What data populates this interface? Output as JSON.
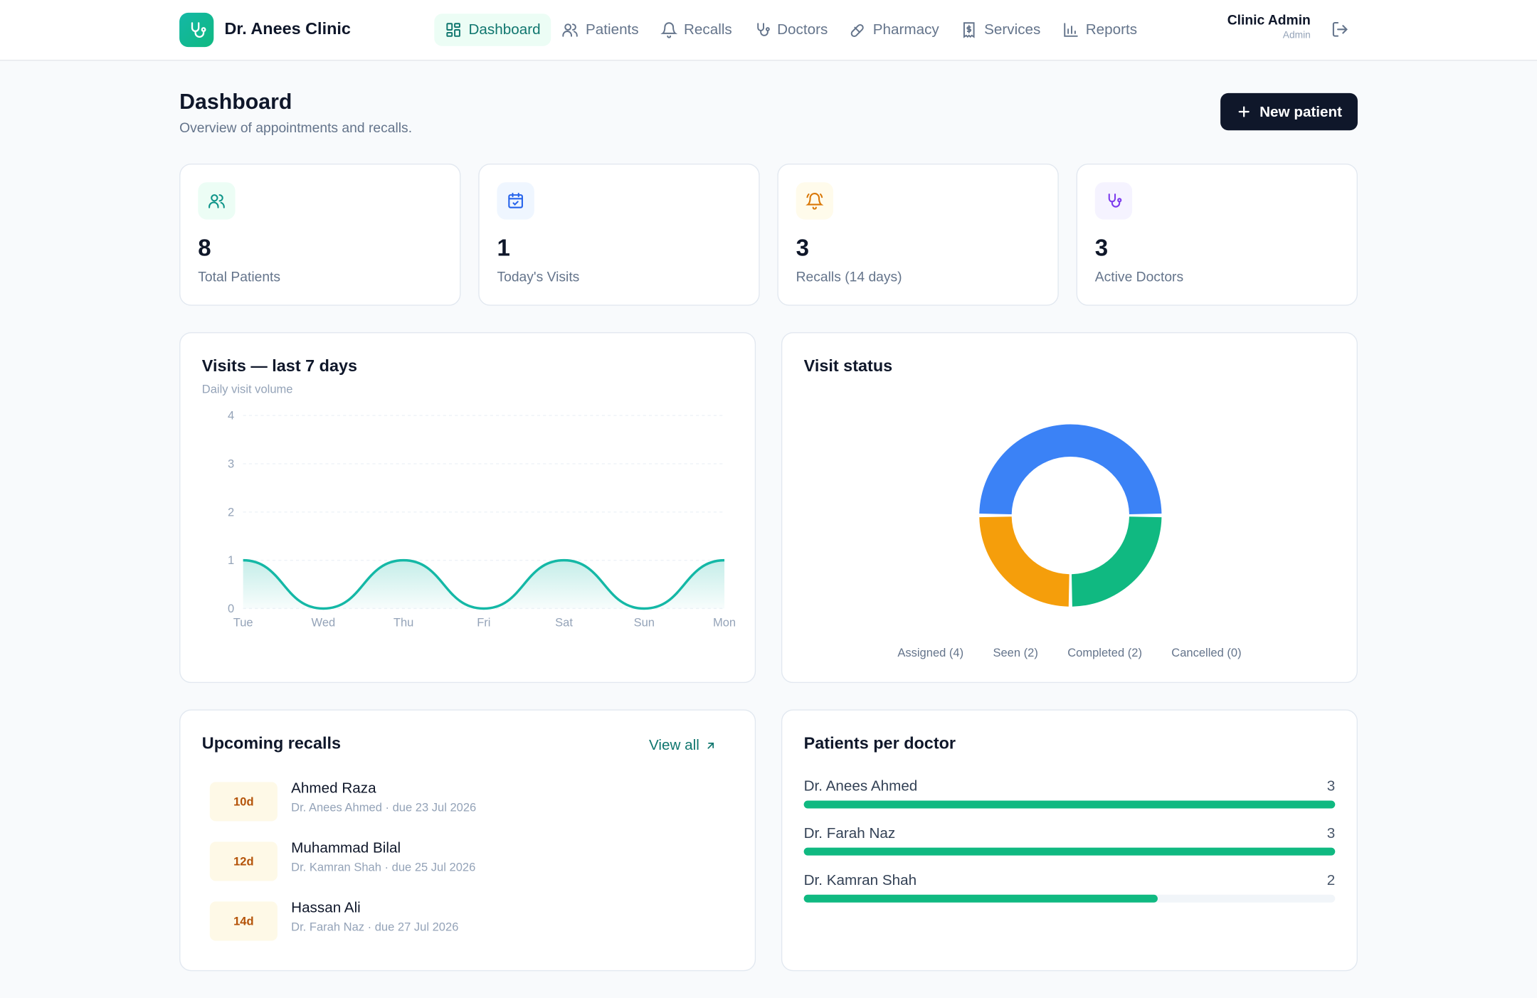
{
  "brand": {
    "name": "Dr. Anees Clinic",
    "logo_icon": "stethoscope-icon"
  },
  "nav": [
    {
      "label": "Dashboard",
      "icon": "dashboard-icon",
      "active": true
    },
    {
      "label": "Patients",
      "icon": "users-icon"
    },
    {
      "label": "Recalls",
      "icon": "bell-icon"
    },
    {
      "label": "Doctors",
      "icon": "stethoscope-icon"
    },
    {
      "label": "Pharmacy",
      "icon": "pill-icon"
    },
    {
      "label": "Services",
      "icon": "receipt-icon"
    },
    {
      "label": "Reports",
      "icon": "bar-chart-icon"
    }
  ],
  "user": {
    "name": "Clinic Admin",
    "role": "Admin",
    "logout_icon": "logout-icon"
  },
  "page": {
    "title": "Dashboard",
    "subtitle": "Overview of appointments and recalls.",
    "new_button": "New patient"
  },
  "stats": [
    {
      "value": "8",
      "label": "Total Patients",
      "icon": "users-icon",
      "color": "#0d9488",
      "bg": "#ecfdf5"
    },
    {
      "value": "1",
      "label": "Today's Visits",
      "icon": "calendar-check-icon",
      "color": "#2563eb",
      "bg": "#eff6ff"
    },
    {
      "value": "3",
      "label": "Recalls (14 days)",
      "icon": "bell-icon",
      "color": "#d97706",
      "bg": "#fffbeb"
    },
    {
      "value": "3",
      "label": "Active Doctors",
      "icon": "stethoscope-icon",
      "color": "#7c3aed",
      "bg": "#f5f3ff"
    }
  ],
  "visits_chart": {
    "title": "Visits — last 7 days",
    "subtitle": "Daily visit volume"
  },
  "status_chart": {
    "title": "Visit status"
  },
  "chart_data": [
    {
      "type": "area",
      "title": "Visits — last 7 days",
      "subtitle": "Daily visit volume",
      "categories": [
        "Tue",
        "Wed",
        "Thu",
        "Fri",
        "Sat",
        "Sun",
        "Mon"
      ],
      "values": [
        1,
        0,
        1,
        0,
        1,
        0,
        1
      ],
      "ylim": [
        0,
        4
      ],
      "yticks": [
        "0",
        "1",
        "2",
        "3",
        "4"
      ],
      "grid": true,
      "color": "#14b8a6"
    },
    {
      "type": "pie",
      "title": "Visit status",
      "donut": true,
      "labels": [
        "Assigned",
        "Seen",
        "Completed",
        "Cancelled"
      ],
      "values": [
        4,
        2,
        2,
        0
      ],
      "legend": [
        "Assigned (4)",
        "Seen (2)",
        "Completed (2)",
        "Cancelled (0)"
      ],
      "colors": [
        "#3b82f6",
        "#10b981",
        "#f59e0b",
        "#ef4444"
      ],
      "legend_position": "bottom"
    },
    {
      "type": "bar",
      "title": "Patients per doctor",
      "categories": [
        "Dr. Anees Ahmed",
        "Dr. Farah Naz",
        "Dr. Kamran Shah"
      ],
      "values": [
        3,
        3,
        2
      ],
      "max": 3,
      "color": "#10b981"
    }
  ],
  "recalls": {
    "title": "Upcoming recalls",
    "view_all": "View all",
    "items": [
      {
        "badge": "10d",
        "name": "Ahmed Raza",
        "meta": "Dr. Anees Ahmed · due 23 Jul 2026"
      },
      {
        "badge": "12d",
        "name": "Muhammad Bilal",
        "meta": "Dr. Kamran Shah · due 25 Jul 2026"
      },
      {
        "badge": "14d",
        "name": "Hassan Ali",
        "meta": "Dr. Farah Naz · due 27 Jul 2026"
      }
    ]
  },
  "doctors": {
    "title": "Patients per doctor",
    "items": [
      {
        "name": "Dr. Anees Ahmed",
        "count": "3"
      },
      {
        "name": "Dr. Farah Naz",
        "count": "3"
      },
      {
        "name": "Dr. Kamran Shah",
        "count": "2"
      }
    ]
  }
}
